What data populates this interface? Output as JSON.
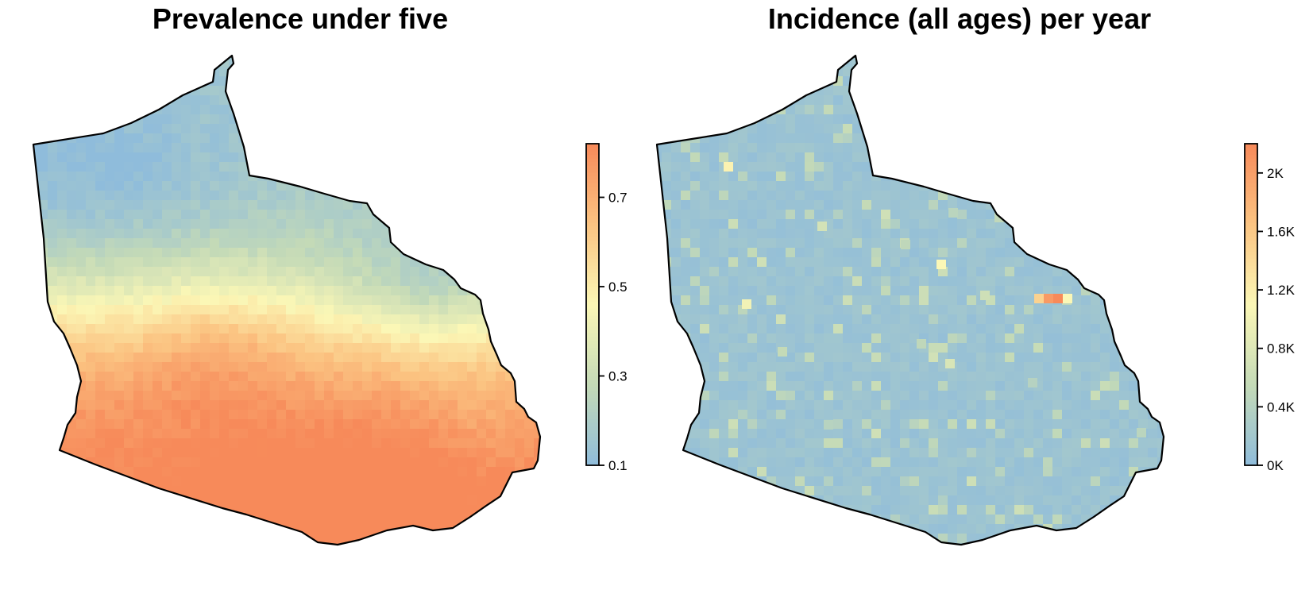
{
  "chart_data": [
    {
      "type": "heatmap",
      "title": "Prevalence under five",
      "xlabel": "",
      "ylabel": "",
      "grid": false,
      "legend": "right",
      "colorbar": {
        "range": [
          0.1,
          0.82
        ],
        "ticks": [
          0.1,
          0.3,
          0.5,
          0.7
        ],
        "tick_labels": [
          "0.1",
          "0.3",
          "0.5",
          "0.7"
        ],
        "colors": [
          "#8fbcdb",
          "#c4dab7",
          "#fbf7b6",
          "#fbc482",
          "#f78a5a"
        ]
      },
      "pattern": "low values (about 0.15–0.3) in the north-west and around the north-east rim; high values (about 0.6–0.8) across the south"
    },
    {
      "type": "heatmap",
      "title": "Incidence (all ages) per year",
      "xlabel": "",
      "ylabel": "",
      "grid": false,
      "legend": "right",
      "colorbar": {
        "range": [
          0,
          2200
        ],
        "ticks": [
          0,
          400,
          800,
          1200,
          1600,
          2000
        ],
        "tick_labels": [
          "0K",
          "0.4K",
          "0.8K",
          "1.2K",
          "1.6K",
          "2K"
        ],
        "colors": [
          "#8fbcdb",
          "#c4dab7",
          "#fbf7b6",
          "#fbc482",
          "#f78a5a"
        ]
      },
      "pattern": "mostly near 0K with scattered cells around 0.4K–1.2K and one hotspot near 2K in the east"
    }
  ]
}
